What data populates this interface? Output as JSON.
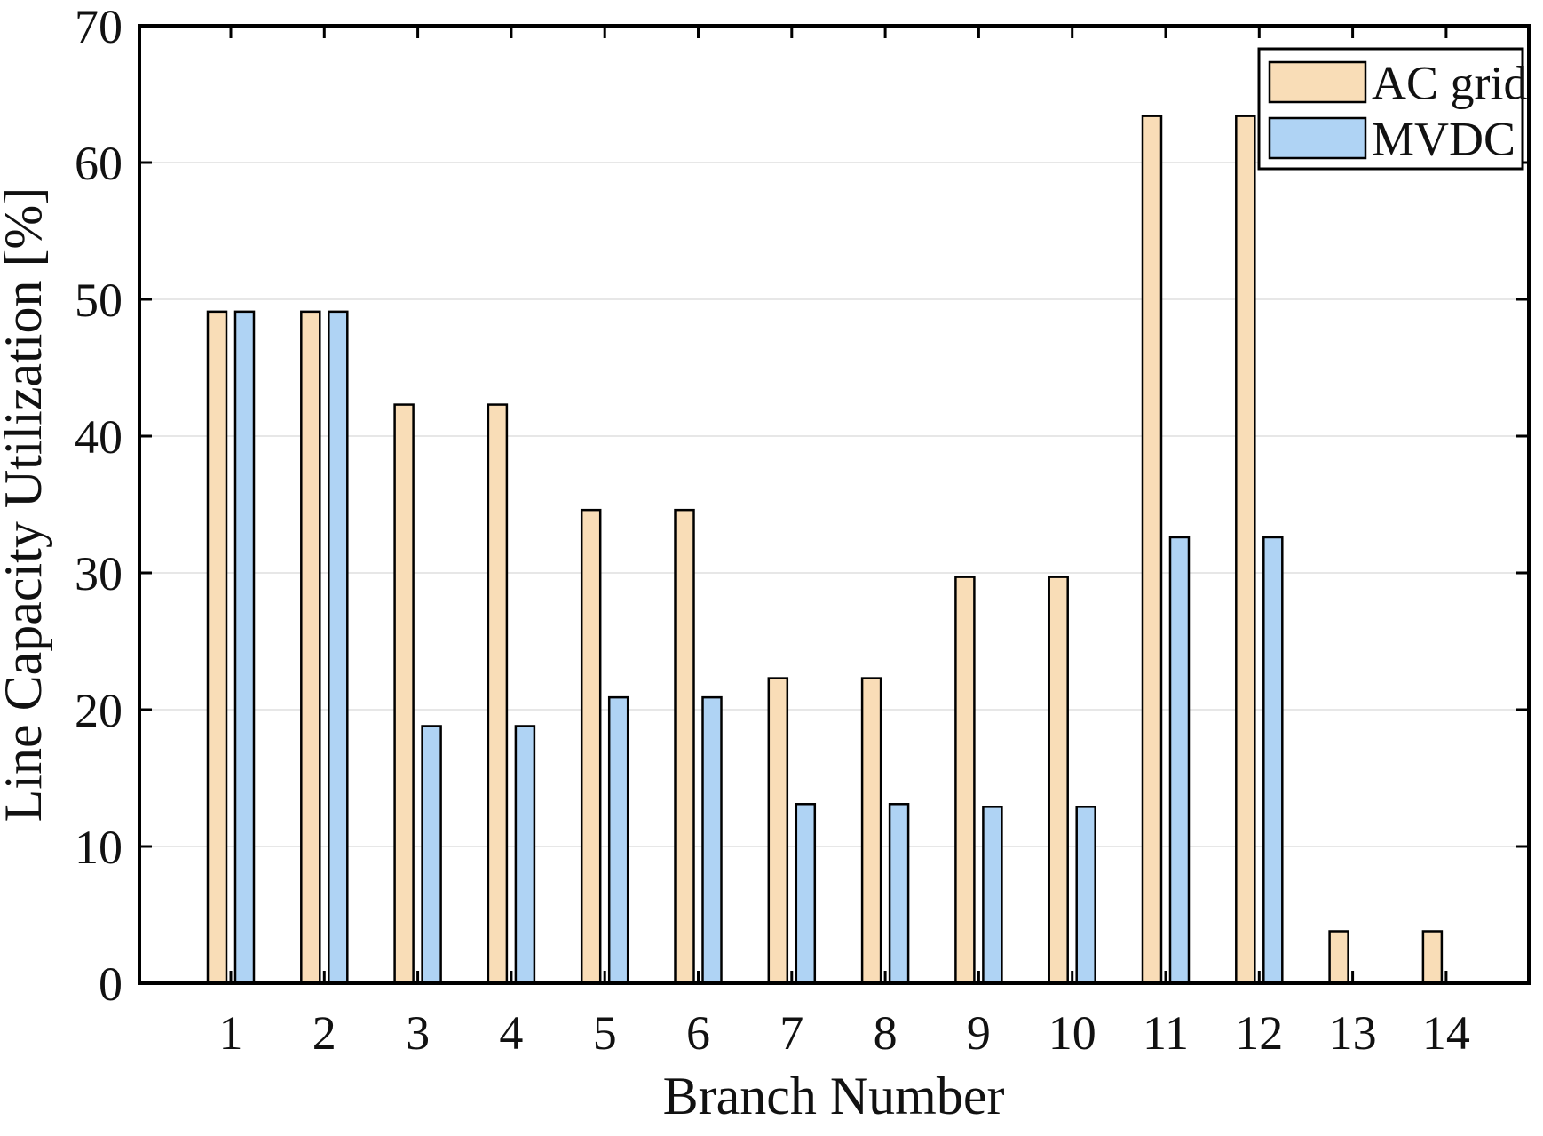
{
  "figure": {
    "background_color": "#FFFFFF",
    "frame_color": "#000000",
    "grid_color": "#E7E7E7",
    "text_color": "#111111"
  },
  "chart_data": {
    "type": "bar",
    "title": "",
    "xlabel": "Branch Number",
    "ylabel": "Line Capacity Utilization [%]",
    "categories": [
      "1",
      "2",
      "3",
      "4",
      "5",
      "6",
      "7",
      "8",
      "9",
      "10",
      "11",
      "12",
      "13",
      "14"
    ],
    "series": [
      {
        "name": "AC grid",
        "color": "#F9DDB7",
        "edge_color": "#000000",
        "values": [
          49.1,
          49.1,
          42.3,
          42.3,
          34.6,
          34.6,
          22.3,
          22.3,
          29.7,
          29.7,
          63.4,
          63.4,
          3.8,
          3.8
        ]
      },
      {
        "name": "MVDC",
        "color": "#AFD3F4",
        "edge_color": "#000000",
        "values": [
          49.1,
          49.1,
          18.8,
          18.8,
          20.9,
          20.9,
          13.1,
          13.1,
          12.9,
          12.9,
          32.6,
          32.6,
          0,
          0
        ]
      }
    ],
    "ylim": [
      0,
      70
    ],
    "yticks": [
      0,
      10,
      20,
      30,
      40,
      50,
      60,
      70
    ],
    "grid": "horizontal",
    "legend_position": "top-right",
    "legend_labels": [
      "AC grid",
      "MVDC"
    ]
  }
}
